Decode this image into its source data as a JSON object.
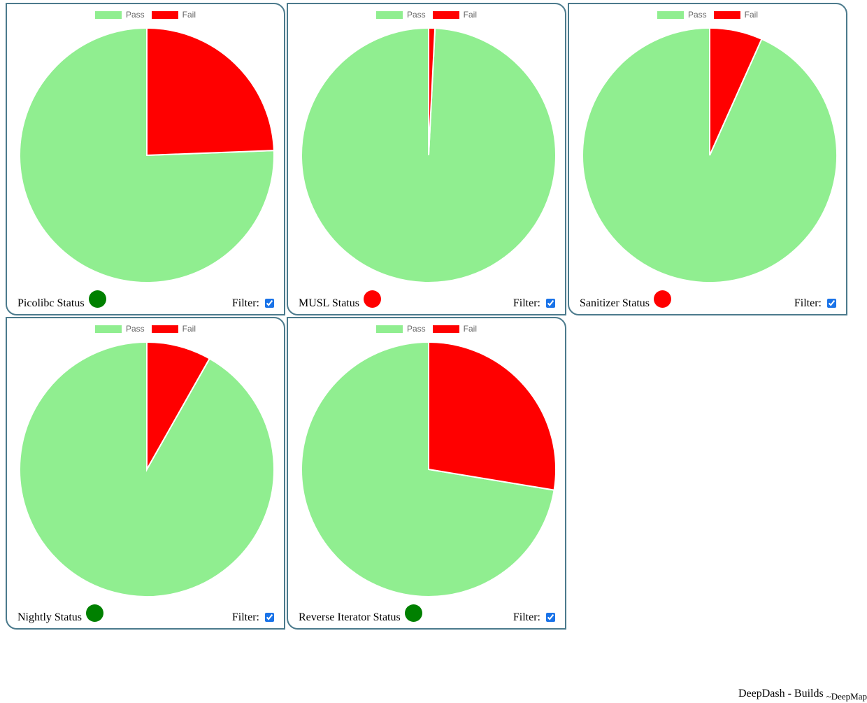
{
  "colors": {
    "pass": "#90ee90",
    "fail": "#ff0000",
    "border": "#4b7a8c",
    "status_green": "#008000",
    "status_red": "#ff0000"
  },
  "cards": [
    {
      "status_label": "Picolibc Status",
      "status_color": "#008000",
      "filter_label": "Filter:",
      "filter_checked": true
    },
    {
      "status_label": "MUSL Status",
      "status_color": "#ff0000",
      "filter_label": "Filter:",
      "filter_checked": true
    },
    {
      "status_label": "Sanitizer Status",
      "status_color": "#ff0000",
      "filter_label": "Filter:",
      "filter_checked": true
    },
    {
      "status_label": "Nightly Status",
      "status_color": "#008000",
      "filter_label": "Filter:",
      "filter_checked": true
    },
    {
      "status_label": "Reverse Iterator Status",
      "status_color": "#008000",
      "filter_label": "Filter:",
      "filter_checked": true
    }
  ],
  "chart_data": [
    {
      "type": "pie",
      "legend": [
        "Pass",
        "Fail"
      ],
      "legend_position": "top",
      "labels": [
        "Pass",
        "Fail"
      ],
      "values": [
        75.6,
        24.4
      ],
      "colors": [
        "#90ee90",
        "#ff0000"
      ]
    },
    {
      "type": "pie",
      "legend": [
        "Pass",
        "Fail"
      ],
      "legend_position": "top",
      "labels": [
        "Pass",
        "Fail"
      ],
      "values": [
        99.2,
        0.8
      ],
      "colors": [
        "#90ee90",
        "#ff0000"
      ]
    },
    {
      "type": "pie",
      "legend": [
        "Pass",
        "Fail"
      ],
      "legend_position": "top",
      "labels": [
        "Pass",
        "Fail"
      ],
      "values": [
        93.3,
        6.7
      ],
      "colors": [
        "#90ee90",
        "#ff0000"
      ]
    },
    {
      "type": "pie",
      "legend": [
        "Pass",
        "Fail"
      ],
      "legend_position": "top",
      "labels": [
        "Pass",
        "Fail"
      ],
      "values": [
        91.8,
        8.2
      ],
      "colors": [
        "#90ee90",
        "#ff0000"
      ]
    },
    {
      "type": "pie",
      "legend": [
        "Pass",
        "Fail"
      ],
      "legend_position": "top",
      "labels": [
        "Pass",
        "Fail"
      ],
      "values": [
        72.4,
        27.6
      ],
      "colors": [
        "#90ee90",
        "#ff0000"
      ]
    }
  ],
  "footer": {
    "title": "DeepDash - Builds",
    "subtitle": "~DeepMap"
  }
}
